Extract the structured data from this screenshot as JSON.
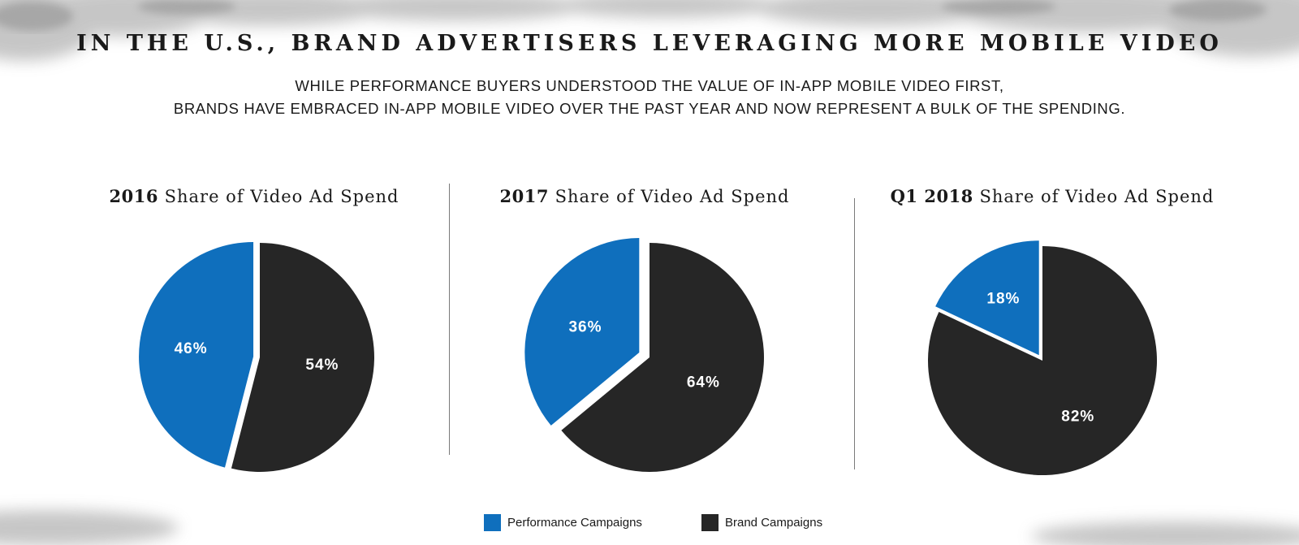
{
  "colors": {
    "performance": "#0f6fbd",
    "brand": "#262626",
    "label": "#ffffff"
  },
  "header": {
    "title": "IN THE U.S., BRAND ADVERTISERS LEVERAGING MORE MOBILE VIDEO",
    "subtitle_line1": "WHILE PERFORMANCE BUYERS UNDERSTOOD THE VALUE OF IN-APP MOBILE VIDEO FIRST,",
    "subtitle_line2": "BRANDS HAVE EMBRACED IN-APP MOBILE VIDEO OVER THE PAST YEAR AND NOW REPRESENT A BULK OF THE SPENDING."
  },
  "chart_data": [
    {
      "type": "pie",
      "title_bold": "2016",
      "title_rest": " Share of Video Ad Spend",
      "slices": [
        {
          "name": "Performance Campaigns",
          "value": 46,
          "label": "46%"
        },
        {
          "name": "Brand Campaigns",
          "value": 54,
          "label": "54%"
        }
      ],
      "exploded_slice": "Performance Campaigns"
    },
    {
      "type": "pie",
      "title_bold": "2017",
      "title_rest": " Share of Video Ad Spend",
      "slices": [
        {
          "name": "Performance Campaigns",
          "value": 36,
          "label": "36%"
        },
        {
          "name": "Brand Campaigns",
          "value": 64,
          "label": "64%"
        }
      ],
      "exploded_slice": "Performance Campaigns"
    },
    {
      "type": "pie",
      "title_bold": "Q1 2018",
      "title_rest": " Share of Video Ad Spend",
      "slices": [
        {
          "name": "Performance Campaigns",
          "value": 18,
          "label": "18%"
        },
        {
          "name": "Brand Campaigns",
          "value": 82,
          "label": "82%"
        }
      ],
      "exploded_slice": "Performance Campaigns"
    }
  ],
  "legend": {
    "placement": "bottom-center",
    "items": [
      {
        "label": "Performance Campaigns",
        "color": "#0f6fbd"
      },
      {
        "label": "Brand Campaigns",
        "color": "#262626"
      }
    ]
  }
}
